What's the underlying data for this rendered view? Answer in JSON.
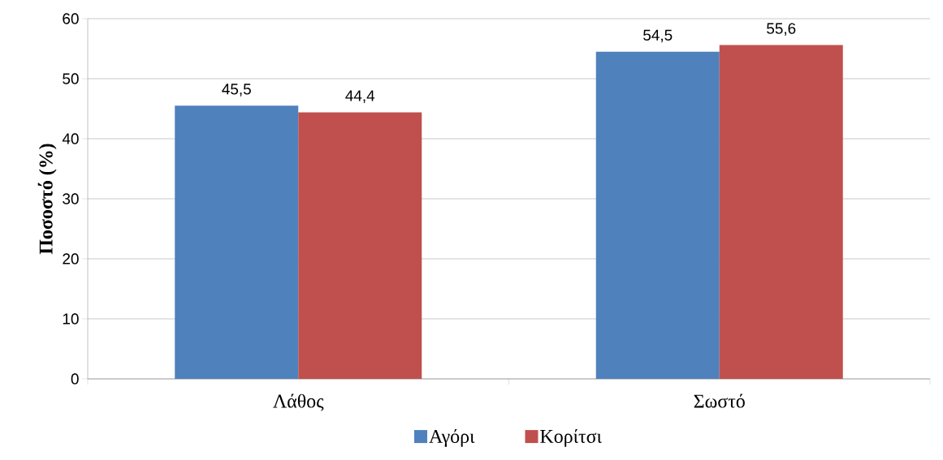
{
  "chart_data": {
    "type": "bar",
    "ylabel": "**Ποσοστό (%)**",
    "categories": [
      "Λάθος",
      "Σωστό"
    ],
    "series": [
      {
        "name": "Αγόρι",
        "color": "#4f81bd",
        "values": [
          45.5,
          54.5
        ],
        "value_labels": [
          "45,5",
          "54,5"
        ]
      },
      {
        "name": "Κορίτσι",
        "color": "#c0504d",
        "values": [
          44.4,
          55.6
        ],
        "value_labels": [
          "44,4",
          "55,6"
        ]
      }
    ],
    "ylim": [
      0,
      60
    ],
    "yticks": [
      0,
      10,
      20,
      30,
      40,
      50,
      60
    ],
    "grid": "y",
    "legend": "bottom"
  }
}
